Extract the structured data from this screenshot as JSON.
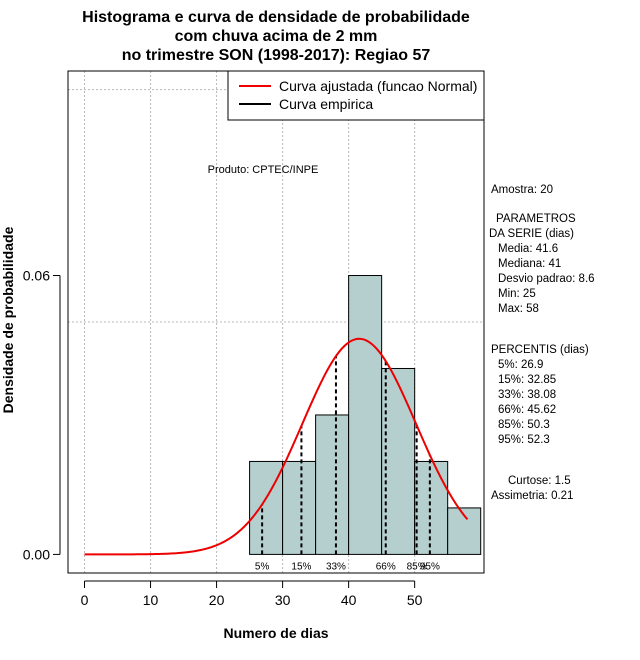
{
  "chart_data": {
    "type": "bar",
    "title_lines": [
      "Histograma e curva de densidade de probabilidade",
      "com chuva acima de 2 mm",
      "no trimestre SON (1998-2017): Regiao 57"
    ],
    "xlabel": "Numero de dias",
    "ylabel": "Densidade de probabilidade",
    "xlim": [
      -2.5,
      60.5
    ],
    "ylim": [
      -0.004,
      0.104
    ],
    "x_ticks": [
      0,
      10,
      20,
      30,
      40,
      50
    ],
    "y_ticks": [
      0.0,
      0.06
    ],
    "y_tick_labels": [
      "0.00",
      "0.06"
    ],
    "grid": true,
    "grid_x": [
      0,
      10,
      20,
      30,
      40,
      50
    ],
    "grid_y": [
      0.1,
      0.05
    ],
    "bins": [
      {
        "x0": 25,
        "x1": 30,
        "density": 0.02
      },
      {
        "x0": 30,
        "x1": 35,
        "density": 0.02
      },
      {
        "x0": 35,
        "x1": 40,
        "density": 0.03
      },
      {
        "x0": 40,
        "x1": 45,
        "density": 0.06
      },
      {
        "x0": 45,
        "x1": 50,
        "density": 0.04
      },
      {
        "x0": 50,
        "x1": 55,
        "density": 0.02
      },
      {
        "x0": 55,
        "x1": 60,
        "density": 0.01
      }
    ],
    "bar_color": "#b5cfcf",
    "normal_curve": {
      "mean": 41.6,
      "sd": 8.6,
      "x_from": 0,
      "x_to": 58,
      "color": "#ee0000"
    },
    "percentiles": [
      {
        "label": "5%",
        "value": 26.9
      },
      {
        "label": "15%",
        "value": 32.85
      },
      {
        "label": "33%",
        "value": 38.08
      },
      {
        "label": "66%",
        "value": 45.62
      },
      {
        "label": "85%",
        "value": 50.3
      },
      {
        "label": "95%",
        "value": 52.3
      }
    ],
    "legend": {
      "placement": "top-right",
      "entries": [
        {
          "label": "Curva ajustada (funcao Normal)",
          "color": "#ee0000"
        },
        {
          "label": "Curva empirica",
          "color": "#000000"
        }
      ]
    },
    "annotation": "Produto: CPTEC/INPE",
    "stats_panel": {
      "amostra": "Amostra: 20",
      "params_title_1": "PARAMETROS",
      "params_title_2": "DA SERIE (dias)",
      "params": [
        "Media: 41.6",
        "Mediana: 41",
        "Desvio padrao: 8.6",
        "Min: 25",
        "Max: 58"
      ],
      "pct_title": "PERCENTIS (dias)",
      "pct_lines": [
        "5%: 26.9",
        "15%: 32.85",
        "33%: 38.08",
        "66%: 45.62",
        "85%: 50.3",
        "95%: 52.3"
      ],
      "curtose": "Curtose: 1.5",
      "assimetria": "Assimetria: 0.21"
    }
  }
}
